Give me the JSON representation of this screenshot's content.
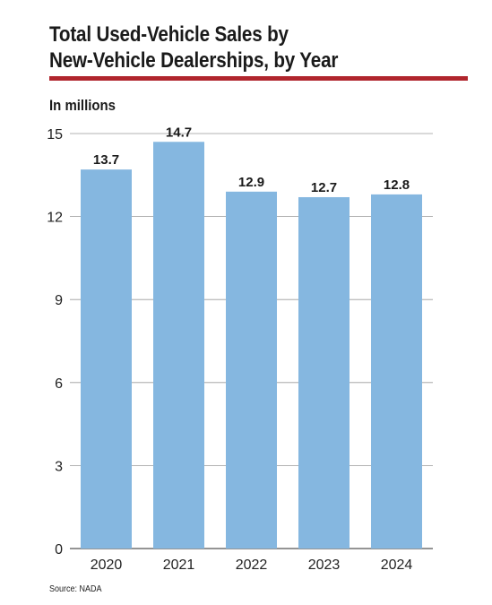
{
  "header": {
    "title_line1": "Total Used-Vehicle Sales by",
    "title_line2": "New-Vehicle Dealerships, by Year",
    "accent_color": "#b0252d"
  },
  "chart_data": {
    "type": "bar",
    "title": "Total Used-Vehicle Sales by New-Vehicle Dealerships, by Year",
    "ylabel": "In millions",
    "categories": [
      "2020",
      "2021",
      "2022",
      "2023",
      "2024"
    ],
    "values": [
      13.7,
      14.7,
      12.9,
      12.7,
      12.8
    ],
    "value_labels": [
      "13.7",
      "14.7",
      "12.9",
      "12.7",
      "12.8"
    ],
    "ylim": [
      0,
      15
    ],
    "yticks": [
      0,
      3,
      6,
      9,
      12,
      15
    ],
    "grid": true,
    "bar_color": "#85b7e0"
  },
  "footer": {
    "source": "Source: NADA"
  }
}
